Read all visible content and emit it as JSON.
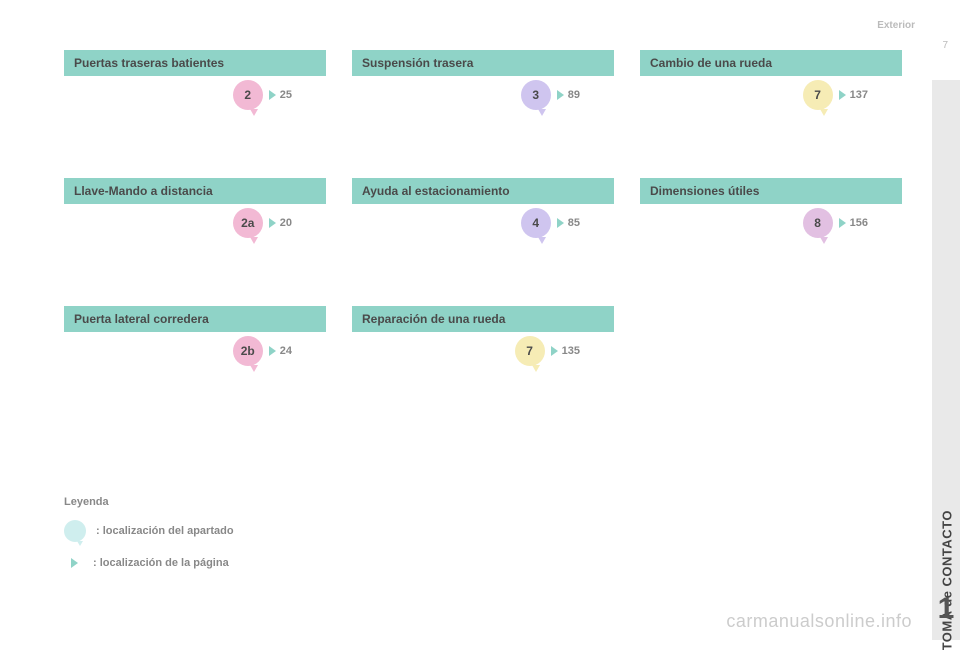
{
  "header": {
    "section": "Exterior"
  },
  "rail": {
    "label": "TOMA de CONTACTO",
    "number": "1",
    "pagenum": "7"
  },
  "colors": {
    "titleBg": "#8fd3c7",
    "pink": "#f2b9d4",
    "lilac": "#cfc5ef",
    "cream": "#f6ecb5",
    "mauve": "#e2c0e2",
    "triGreen": "#8fd3c7"
  },
  "cards": [
    [
      {
        "title": "Puertas traseras batientes",
        "bubble": "2",
        "color": "pink",
        "page": "25"
      },
      {
        "title": "Suspensión trasera",
        "bubble": "3",
        "color": "lilac",
        "page": "89"
      },
      {
        "title": "Cambio de una rueda",
        "bubble": "7",
        "color": "cream",
        "page": "137"
      }
    ],
    [
      {
        "title": "Llave-Mando a distancia",
        "bubble": "2a",
        "color": "pink",
        "page": "20"
      },
      {
        "title": "Ayuda al estacionamiento",
        "bubble": "4",
        "color": "lilac",
        "page": "85"
      },
      {
        "title": "Dimensiones útiles",
        "bubble": "8",
        "color": "mauve",
        "page": "156"
      }
    ],
    [
      {
        "title": "Puerta lateral corredera",
        "bubble": "2b",
        "color": "pink",
        "page": "24"
      },
      {
        "title": "Reparación de una rueda",
        "bubble": "7",
        "color": "cream",
        "page": "135"
      }
    ]
  ],
  "legend": {
    "title": "Leyenda",
    "locSection": ": localización del apartado",
    "locPage": ": localización de la página"
  },
  "watermark": "carmanualsonline.info"
}
